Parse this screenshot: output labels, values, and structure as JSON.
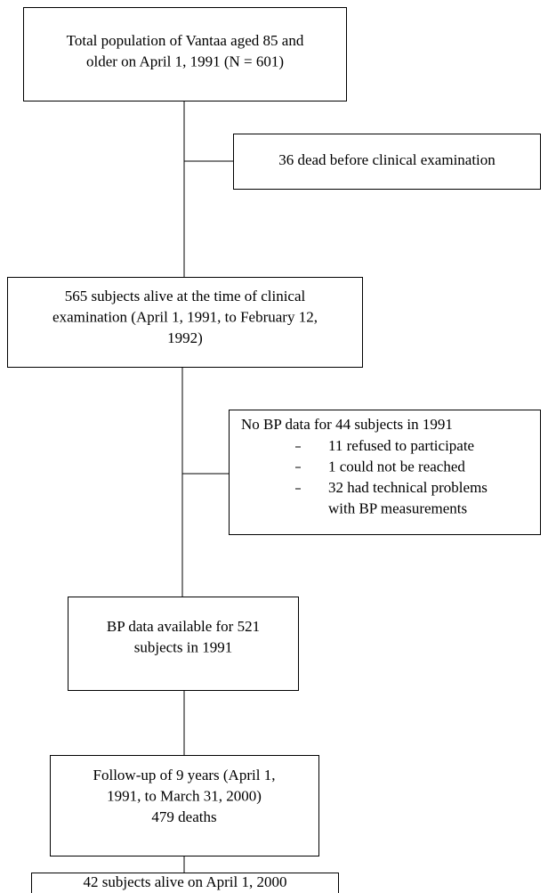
{
  "nodes": [
    {
      "lines": [
        "Total population of Vantaa aged 85 and",
        "older on April 1, 1991 (N = 601)"
      ]
    },
    {
      "lines": [
        "36 dead before clinical examination"
      ]
    },
    {
      "lines": [
        "565 subjects alive at the time of clinical",
        "examination (April 1, 1991, to February 12,",
        "1992)"
      ]
    },
    {
      "title": "No BP data for 44 subjects in 1991",
      "items": [
        [
          "11 refused to participate"
        ],
        [
          "1 could not be reached"
        ],
        [
          "32 had technical problems",
          "with BP measurements"
        ]
      ]
    },
    {
      "lines": [
        "BP data available for 521",
        "subjects in 1991"
      ]
    },
    {
      "lines": [
        "Follow-up of 9 years (April 1,",
        "1991, to March 31, 2000)",
        "479 deaths"
      ]
    },
    {
      "lines": [
        "42 subjects alive on April 1, 2000"
      ]
    }
  ]
}
